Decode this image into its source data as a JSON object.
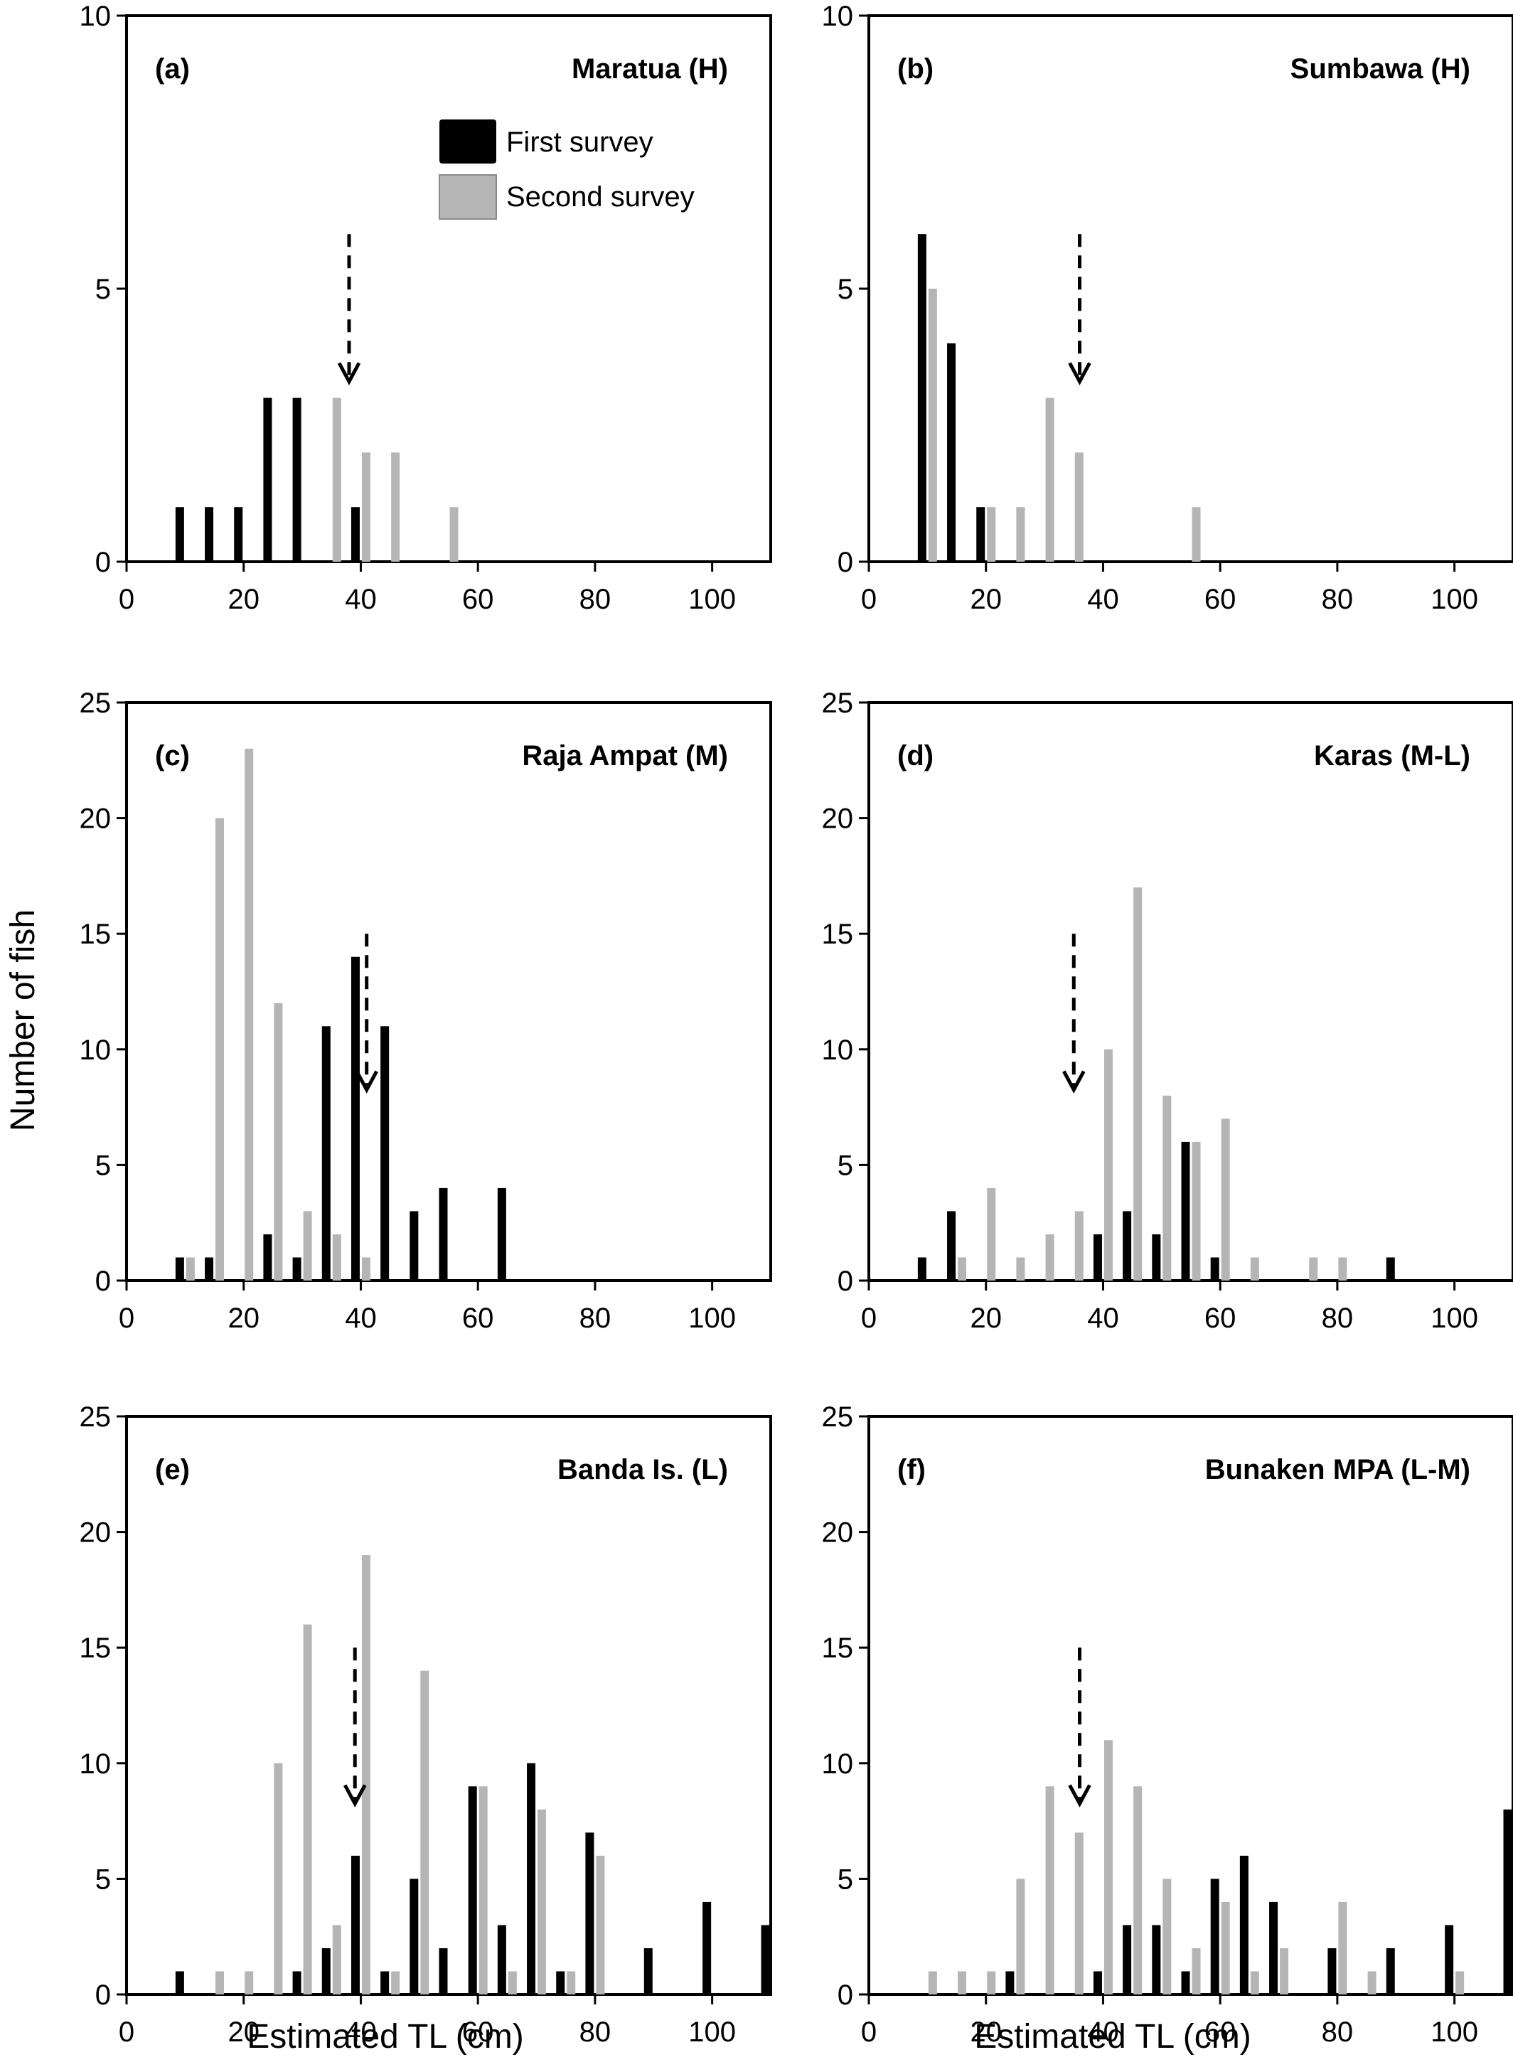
{
  "figure": {
    "ylabel": "Number of fish",
    "xlabel": "Estimated TL (cm)",
    "legend": {
      "first": "First survey",
      "second": "Second survey"
    },
    "colors": {
      "first": "#000000",
      "second": "#b5b5b5",
      "axis": "#000000"
    }
  },
  "chart_data": [
    {
      "type": "bar",
      "panel": "(a)",
      "title": "Maratua (H)",
      "xlim": [
        0,
        110
      ],
      "ylim": [
        0,
        10
      ],
      "xticks": [
        0,
        20,
        40,
        60,
        80,
        100
      ],
      "yticks": [
        0,
        5,
        10
      ],
      "arrow_x": 38,
      "series": [
        {
          "name": "First survey",
          "x": [
            10,
            15,
            20,
            25,
            30,
            40
          ],
          "values": [
            1,
            1,
            1,
            3,
            3,
            1
          ]
        },
        {
          "name": "Second survey",
          "x": [
            35,
            40,
            45,
            55
          ],
          "values": [
            3,
            2,
            2,
            1
          ]
        }
      ]
    },
    {
      "type": "bar",
      "panel": "(b)",
      "title": "Sumbawa (H)",
      "xlim": [
        0,
        110
      ],
      "ylim": [
        0,
        10
      ],
      "xticks": [
        0,
        20,
        40,
        60,
        80,
        100
      ],
      "yticks": [
        0,
        5,
        10
      ],
      "arrow_x": 36,
      "series": [
        {
          "name": "First survey",
          "x": [
            10,
            15,
            20
          ],
          "values": [
            6,
            4,
            1
          ]
        },
        {
          "name": "Second survey",
          "x": [
            10,
            20,
            25,
            30,
            35,
            55
          ],
          "values": [
            5,
            1,
            1,
            3,
            2,
            1
          ]
        }
      ]
    },
    {
      "type": "bar",
      "panel": "(c)",
      "title": "Raja Ampat (M)",
      "xlim": [
        0,
        110
      ],
      "ylim": [
        0,
        25
      ],
      "xticks": [
        0,
        20,
        40,
        60,
        80,
        100
      ],
      "yticks": [
        0,
        5,
        10,
        15,
        20,
        25
      ],
      "arrow_x": 41,
      "series": [
        {
          "name": "First survey",
          "x": [
            10,
            15,
            25,
            30,
            35,
            40,
            45,
            50,
            55,
            65
          ],
          "values": [
            1,
            1,
            2,
            1,
            11,
            14,
            11,
            3,
            4,
            4
          ]
        },
        {
          "name": "Second survey",
          "x": [
            10,
            15,
            20,
            25,
            30,
            35,
            40
          ],
          "values": [
            1,
            20,
            23,
            12,
            3,
            2,
            1
          ]
        }
      ]
    },
    {
      "type": "bar",
      "panel": "(d)",
      "title": "Karas (M-L)",
      "xlim": [
        0,
        110
      ],
      "ylim": [
        0,
        25
      ],
      "xticks": [
        0,
        20,
        40,
        60,
        80,
        100
      ],
      "yticks": [
        0,
        5,
        10,
        15,
        20,
        25
      ],
      "arrow_x": 35,
      "series": [
        {
          "name": "First survey",
          "x": [
            10,
            15,
            40,
            45,
            50,
            55,
            60,
            90
          ],
          "values": [
            1,
            3,
            2,
            3,
            2,
            6,
            1,
            1
          ]
        },
        {
          "name": "Second survey",
          "x": [
            15,
            20,
            25,
            30,
            35,
            40,
            45,
            50,
            55,
            60,
            65,
            75,
            80
          ],
          "values": [
            1,
            4,
            1,
            2,
            3,
            10,
            17,
            8,
            6,
            7,
            1,
            1,
            1
          ]
        }
      ]
    },
    {
      "type": "bar",
      "panel": "(e)",
      "title": "Banda Is. (L)",
      "xlim": [
        0,
        110
      ],
      "ylim": [
        0,
        25
      ],
      "xticks": [
        0,
        20,
        40,
        60,
        80,
        100
      ],
      "yticks": [
        0,
        5,
        10,
        15,
        20,
        25
      ],
      "arrow_x": 39,
      "series": [
        {
          "name": "First survey",
          "x": [
            10,
            30,
            35,
            40,
            45,
            50,
            55,
            60,
            65,
            70,
            75,
            80,
            90,
            100,
            110
          ],
          "values": [
            1,
            1,
            2,
            6,
            1,
            5,
            2,
            9,
            3,
            10,
            1,
            7,
            2,
            4,
            3
          ]
        },
        {
          "name": "Second survey",
          "x": [
            15,
            20,
            25,
            30,
            35,
            40,
            45,
            50,
            60,
            65,
            70,
            75,
            80
          ],
          "values": [
            1,
            1,
            10,
            16,
            3,
            19,
            1,
            14,
            9,
            1,
            8,
            1,
            6
          ]
        }
      ]
    },
    {
      "type": "bar",
      "panel": "(f)",
      "title": "Bunaken MPA (L-M)",
      "xlim": [
        0,
        110
      ],
      "ylim": [
        0,
        25
      ],
      "xticks": [
        0,
        20,
        40,
        60,
        80,
        100
      ],
      "yticks": [
        0,
        5,
        10,
        15,
        20,
        25
      ],
      "arrow_x": 36,
      "series": [
        {
          "name": "First survey",
          "x": [
            25,
            40,
            45,
            50,
            55,
            60,
            65,
            70,
            80,
            90,
            100,
            110
          ],
          "values": [
            1,
            1,
            3,
            3,
            1,
            5,
            6,
            4,
            2,
            2,
            3,
            8
          ]
        },
        {
          "name": "Second survey",
          "x": [
            10,
            15,
            20,
            25,
            30,
            35,
            40,
            45,
            50,
            55,
            60,
            65,
            70,
            80,
            85,
            100
          ],
          "values": [
            1,
            1,
            1,
            5,
            9,
            7,
            11,
            9,
            5,
            2,
            4,
            1,
            2,
            4,
            1,
            1
          ]
        }
      ]
    }
  ]
}
